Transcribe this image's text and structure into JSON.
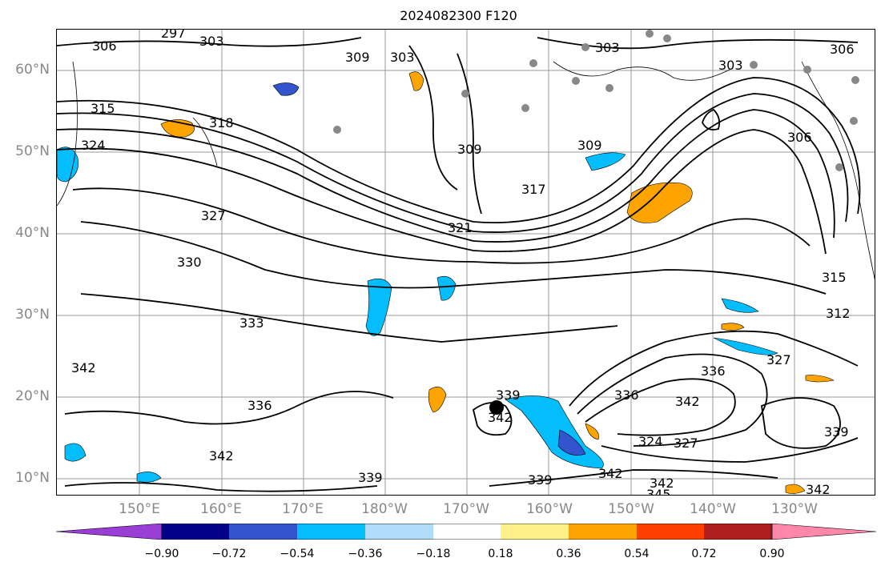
{
  "title": "2024082300 F120",
  "lat_labels": [
    "60°N",
    "50°N",
    "40°N",
    "30°N",
    "20°N",
    "10°N"
  ],
  "lon_labels": [
    "150°E",
    "160°E",
    "170°E",
    "180°W",
    "170°W",
    "160°W",
    "150°W",
    "140°W",
    "130°W"
  ],
  "contour_labels": [
    "297",
    "303",
    "306",
    "306",
    "303",
    "309",
    "303",
    "303",
    "315",
    "318",
    "324",
    "309",
    "317",
    "321",
    "306",
    "309",
    "327",
    "330",
    "315",
    "312",
    "333",
    "327",
    "342",
    "336",
    "336",
    "339",
    "342",
    "342",
    "336",
    "339",
    "342",
    "324",
    "327",
    "342",
    "339",
    "339",
    "342",
    "345",
    "342"
  ],
  "colorbar": {
    "ticks": [
      "−0.90",
      "−0.72",
      "−0.54",
      "−0.36",
      "−0.18",
      "0.18",
      "0.36",
      "0.54",
      "0.72",
      "0.90"
    ],
    "colors": [
      "#9a3fd6",
      "#03008b",
      "#3354cc",
      "#04bdfc",
      "#aedcfa",
      "#ffffff",
      "#fff08a",
      "#fea400",
      "#fe3f00",
      "#b01f20",
      "#ff88aa"
    ]
  },
  "colors": {
    "grid": "#999999",
    "contour": "#000000",
    "station": "#888888",
    "center": "#000000"
  },
  "markers": {
    "storm_center": "tropical cyclone center",
    "stations": "grey observation dots"
  }
}
